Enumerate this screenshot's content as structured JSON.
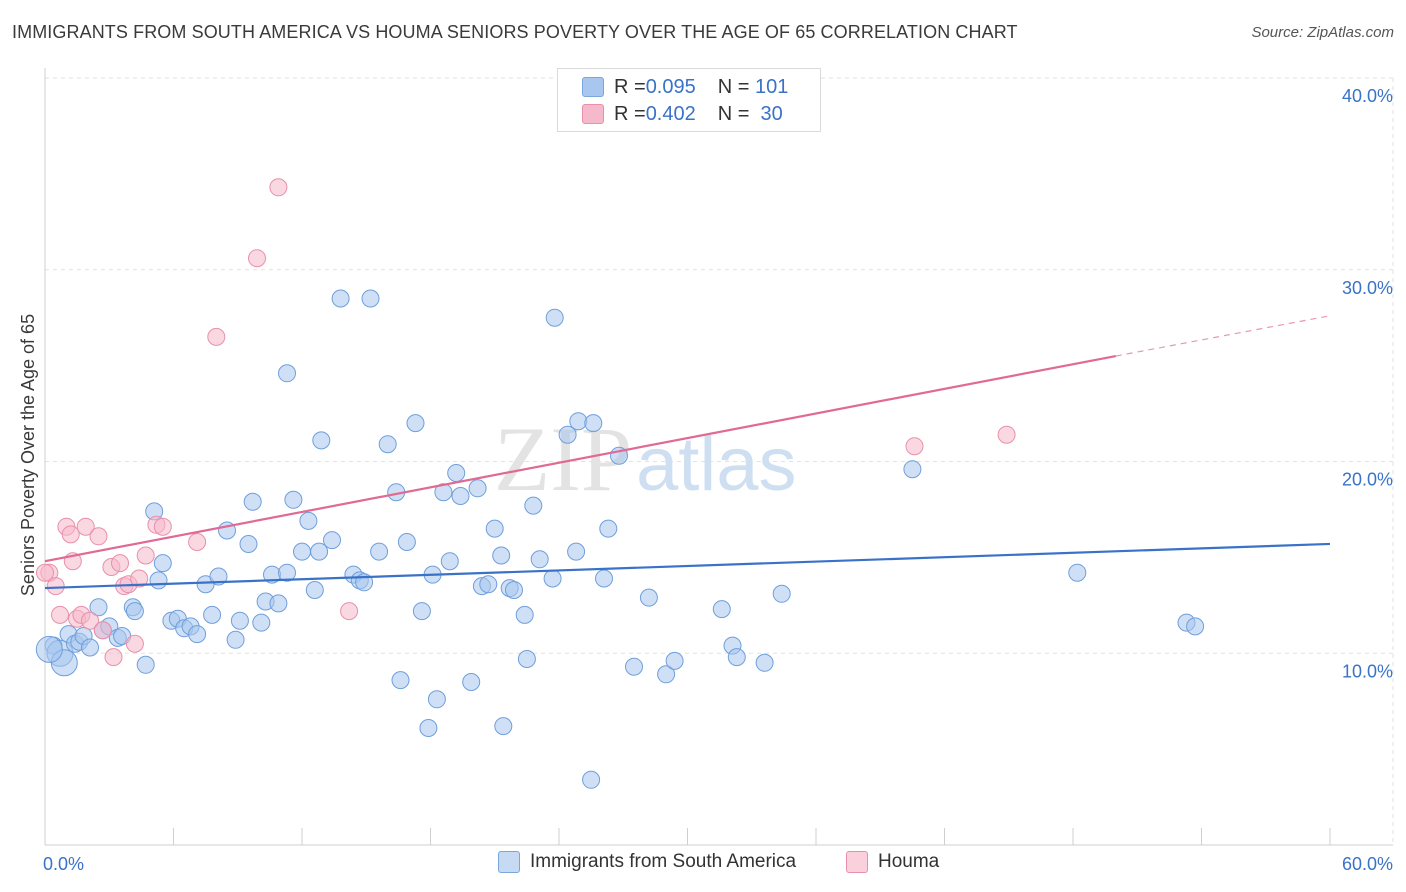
{
  "title": "IMMIGRANTS FROM SOUTH AMERICA VS HOUMA SENIORS POVERTY OVER THE AGE OF 65 CORRELATION CHART",
  "source": "Source: ZipAtlas.com",
  "watermark": {
    "zip": "ZIP",
    "atlas": "atlas"
  },
  "legend": {
    "rows": [
      {
        "r_label": "R = ",
        "r_value": "0.095",
        "n_label": "N = ",
        "n_value": "101",
        "color": "#a8c6ee"
      },
      {
        "r_label": "R = ",
        "r_value": "0.402",
        "n_label": "N = ",
        "n_value": " 30",
        "color": "#f6b8cb"
      }
    ]
  },
  "bottom_legend": [
    {
      "label": "Immigrants from South America",
      "color": "#a8c6ee"
    },
    {
      "label": "Houma",
      "color": "#f6b8cb"
    }
  ],
  "chart_data": {
    "type": "scatter",
    "title": "IMMIGRANTS FROM SOUTH AMERICA VS HOUMA SENIORS POVERTY OVER THE AGE OF 65 CORRELATION CHART",
    "xlabel": "",
    "ylabel": "Seniors Poverty Over the Age of 65",
    "xlim": [
      0,
      60
    ],
    "ylim": [
      0,
      40
    ],
    "x_tick_labels": [
      "0.0%",
      "60.0%"
    ],
    "y_ticks": [
      10,
      20,
      30,
      40
    ],
    "y_tick_labels": [
      "10.0%",
      "20.0%",
      "30.0%",
      "40.0%"
    ],
    "grid": true,
    "legend_position": "top-center",
    "series": [
      {
        "name": "Immigrants from South America",
        "color": "#a8c6ee",
        "stroke": "#6f9fdb",
        "trend_color": "#3a72c8",
        "trend": {
          "x": [
            0,
            60
          ],
          "y": [
            13.4,
            15.7
          ]
        },
        "points": [
          [
            0.4,
            10.4
          ],
          [
            0.7,
            10.0
          ],
          [
            0.9,
            9.5
          ],
          [
            1.1,
            11.0
          ],
          [
            1.4,
            10.5
          ],
          [
            1.6,
            10.6
          ],
          [
            1.8,
            10.9
          ],
          [
            2.1,
            10.3
          ],
          [
            2.5,
            12.4
          ],
          [
            2.7,
            11.2
          ],
          [
            3.0,
            11.4
          ],
          [
            3.4,
            10.8
          ],
          [
            3.6,
            10.9
          ],
          [
            4.1,
            12.4
          ],
          [
            4.2,
            12.2
          ],
          [
            4.7,
            9.4
          ],
          [
            5.1,
            17.4
          ],
          [
            5.3,
            13.8
          ],
          [
            5.5,
            14.7
          ],
          [
            5.9,
            11.7
          ],
          [
            6.2,
            11.8
          ],
          [
            6.5,
            11.3
          ],
          [
            6.8,
            11.4
          ],
          [
            7.1,
            11.0
          ],
          [
            7.5,
            13.6
          ],
          [
            7.8,
            12.0
          ],
          [
            8.1,
            14.0
          ],
          [
            8.5,
            16.4
          ],
          [
            8.9,
            10.7
          ],
          [
            9.1,
            11.7
          ],
          [
            9.5,
            15.7
          ],
          [
            9.7,
            17.9
          ],
          [
            10.1,
            11.6
          ],
          [
            10.3,
            12.7
          ],
          [
            10.6,
            14.1
          ],
          [
            10.9,
            12.6
          ],
          [
            11.3,
            14.2
          ],
          [
            11.3,
            24.6
          ],
          [
            11.6,
            18.0
          ],
          [
            12.0,
            15.3
          ],
          [
            12.3,
            16.9
          ],
          [
            12.6,
            13.3
          ],
          [
            12.9,
            21.1
          ],
          [
            12.8,
            15.3
          ],
          [
            13.4,
            15.9
          ],
          [
            13.8,
            28.5
          ],
          [
            14.4,
            14.1
          ],
          [
            14.7,
            13.8
          ],
          [
            14.9,
            13.7
          ],
          [
            15.2,
            28.5
          ],
          [
            15.6,
            15.3
          ],
          [
            16.0,
            20.9
          ],
          [
            16.4,
            18.4
          ],
          [
            16.6,
            8.6
          ],
          [
            16.9,
            15.8
          ],
          [
            17.3,
            22.0
          ],
          [
            17.6,
            12.2
          ],
          [
            17.9,
            6.1
          ],
          [
            18.1,
            14.1
          ],
          [
            18.3,
            7.6
          ],
          [
            18.6,
            18.4
          ],
          [
            18.9,
            14.8
          ],
          [
            19.2,
            19.4
          ],
          [
            19.4,
            18.2
          ],
          [
            19.9,
            8.5
          ],
          [
            20.2,
            18.6
          ],
          [
            20.4,
            13.5
          ],
          [
            20.7,
            13.6
          ],
          [
            21.0,
            16.5
          ],
          [
            21.3,
            15.1
          ],
          [
            21.4,
            6.2
          ],
          [
            21.7,
            13.4
          ],
          [
            21.9,
            13.3
          ],
          [
            22.4,
            12.0
          ],
          [
            22.5,
            9.7
          ],
          [
            22.8,
            17.7
          ],
          [
            23.1,
            14.9
          ],
          [
            23.7,
            13.9
          ],
          [
            23.8,
            27.5
          ],
          [
            24.4,
            21.4
          ],
          [
            24.8,
            15.3
          ],
          [
            24.9,
            22.1
          ],
          [
            25.5,
            3.4
          ],
          [
            25.6,
            22.0
          ],
          [
            26.1,
            13.9
          ],
          [
            26.3,
            16.5
          ],
          [
            26.8,
            20.3
          ],
          [
            27.5,
            9.3
          ],
          [
            28.2,
            12.9
          ],
          [
            29.0,
            8.9
          ],
          [
            29.4,
            9.6
          ],
          [
            31.6,
            12.3
          ],
          [
            32.1,
            10.4
          ],
          [
            32.3,
            9.8
          ],
          [
            33.6,
            9.5
          ],
          [
            34.4,
            13.1
          ],
          [
            40.5,
            19.6
          ],
          [
            48.2,
            14.2
          ],
          [
            53.3,
            11.6
          ],
          [
            53.7,
            11.4
          ],
          [
            0.2,
            10.2
          ]
        ]
      },
      {
        "name": "Houma",
        "color": "#f6b8cb",
        "stroke": "#e890ab",
        "trend_color": "#e06a93",
        "trend": {
          "x": [
            0,
            50
          ],
          "y": [
            14.8,
            25.5
          ]
        },
        "trend_dashed_to": {
          "x": 60,
          "y": 27.6
        },
        "points": [
          [
            0.2,
            14.2
          ],
          [
            0.5,
            13.5
          ],
          [
            0.7,
            12.0
          ],
          [
            1.0,
            16.6
          ],
          [
            1.2,
            16.2
          ],
          [
            1.3,
            14.8
          ],
          [
            1.5,
            11.8
          ],
          [
            1.7,
            12.0
          ],
          [
            1.9,
            16.6
          ],
          [
            2.1,
            11.7
          ],
          [
            2.5,
            16.1
          ],
          [
            2.7,
            11.2
          ],
          [
            3.1,
            14.5
          ],
          [
            3.2,
            9.8
          ],
          [
            3.5,
            14.7
          ],
          [
            3.7,
            13.5
          ],
          [
            3.9,
            13.6
          ],
          [
            4.2,
            10.5
          ],
          [
            4.4,
            13.9
          ],
          [
            4.7,
            15.1
          ],
          [
            5.2,
            16.7
          ],
          [
            5.5,
            16.6
          ],
          [
            7.1,
            15.8
          ],
          [
            8.0,
            26.5
          ],
          [
            9.9,
            30.6
          ],
          [
            10.9,
            34.3
          ],
          [
            14.2,
            12.2
          ],
          [
            40.6,
            20.8
          ],
          [
            44.9,
            21.4
          ],
          [
            0.0,
            14.2
          ]
        ]
      }
    ]
  }
}
